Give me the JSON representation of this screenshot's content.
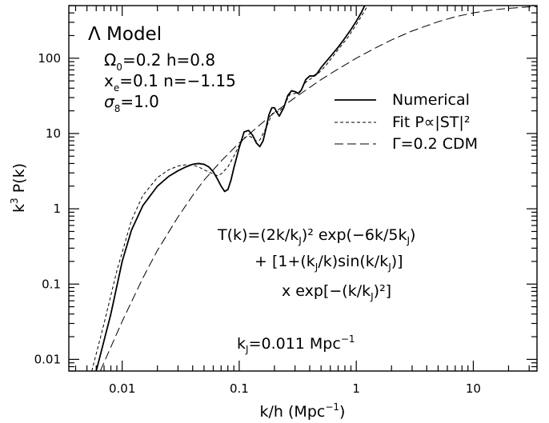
{
  "chart_data": {
    "type": "line",
    "xlabel": "k/h (Mpc",
    "xlabel_sup": "−1",
    "xlabel_end": ")",
    "ylabel": "k",
    "ylabel_sup": "3",
    "ylabel_end": " P(k)",
    "x_scale": "log",
    "y_scale": "log",
    "xlim": [
      0.0035,
      35
    ],
    "ylim": [
      0.007,
      500
    ],
    "x_ticks": [
      {
        "value": 0.01,
        "label": "0.01"
      },
      {
        "value": 0.1,
        "label": "0.1"
      },
      {
        "value": 1,
        "label": "1"
      },
      {
        "value": 10,
        "label": "10"
      }
    ],
    "y_ticks": [
      {
        "value": 0.01,
        "label": "0.01"
      },
      {
        "value": 0.1,
        "label": "0.1"
      },
      {
        "value": 1,
        "label": "1"
      },
      {
        "value": 10,
        "label": "10"
      },
      {
        "value": 100,
        "label": "100"
      }
    ],
    "legend_position": "right",
    "series": [
      {
        "name": "Numerical",
        "style": "solid",
        "points": [
          [
            0.006,
            0.007
          ],
          [
            0.008,
            0.04
          ],
          [
            0.01,
            0.2
          ],
          [
            0.012,
            0.52
          ],
          [
            0.015,
            1.1
          ],
          [
            0.02,
            2.0
          ],
          [
            0.025,
            2.7
          ],
          [
            0.03,
            3.2
          ],
          [
            0.035,
            3.6
          ],
          [
            0.04,
            3.9
          ],
          [
            0.045,
            4.0
          ],
          [
            0.05,
            3.9
          ],
          [
            0.055,
            3.6
          ],
          [
            0.06,
            3.1
          ],
          [
            0.065,
            2.5
          ],
          [
            0.07,
            2.0
          ],
          [
            0.075,
            1.7
          ],
          [
            0.08,
            1.8
          ],
          [
            0.085,
            2.4
          ],
          [
            0.09,
            3.5
          ],
          [
            0.1,
            6.5
          ],
          [
            0.11,
            10.5
          ],
          [
            0.12,
            11.0
          ],
          [
            0.13,
            9.5
          ],
          [
            0.14,
            7.5
          ],
          [
            0.15,
            6.7
          ],
          [
            0.16,
            8.0
          ],
          [
            0.17,
            12.0
          ],
          [
            0.18,
            18.0
          ],
          [
            0.19,
            22.0
          ],
          [
            0.2,
            22.0
          ],
          [
            0.21,
            19.0
          ],
          [
            0.22,
            17.0
          ],
          [
            0.24,
            22.0
          ],
          [
            0.26,
            32.0
          ],
          [
            0.28,
            37.0
          ],
          [
            0.3,
            36.0
          ],
          [
            0.32,
            34.0
          ],
          [
            0.34,
            38.0
          ],
          [
            0.37,
            52.0
          ],
          [
            0.4,
            58.0
          ],
          [
            0.43,
            58.0
          ],
          [
            0.46,
            62.0
          ],
          [
            0.5,
            75.0
          ],
          [
            0.6,
            105.0
          ],
          [
            0.7,
            140.0
          ],
          [
            0.8,
            185.0
          ],
          [
            0.9,
            240.0
          ],
          [
            1.0,
            310.0
          ],
          [
            1.1,
            400.0
          ],
          [
            1.18,
            500.0
          ]
        ]
      },
      {
        "name": "Fit P∝|ST|²",
        "style": "short-dash",
        "points": [
          [
            0.0055,
            0.007
          ],
          [
            0.007,
            0.03
          ],
          [
            0.009,
            0.15
          ],
          [
            0.012,
            0.7
          ],
          [
            0.015,
            1.5
          ],
          [
            0.02,
            2.6
          ],
          [
            0.025,
            3.3
          ],
          [
            0.03,
            3.7
          ],
          [
            0.035,
            3.85
          ],
          [
            0.04,
            3.8
          ],
          [
            0.045,
            3.6
          ],
          [
            0.05,
            3.3
          ],
          [
            0.06,
            2.9
          ],
          [
            0.065,
            2.75
          ],
          [
            0.07,
            2.9
          ],
          [
            0.08,
            3.6
          ],
          [
            0.09,
            5.0
          ],
          [
            0.1,
            7.0
          ],
          [
            0.11,
            8.8
          ],
          [
            0.12,
            9.3
          ],
          [
            0.13,
            8.8
          ],
          [
            0.14,
            8.0
          ],
          [
            0.15,
            8.2
          ],
          [
            0.17,
            12.0
          ],
          [
            0.19,
            18.0
          ],
          [
            0.2,
            19.5
          ],
          [
            0.22,
            19.5
          ],
          [
            0.24,
            23.0
          ],
          [
            0.27,
            33.0
          ],
          [
            0.3,
            34.0
          ],
          [
            0.33,
            36.0
          ],
          [
            0.37,
            48.0
          ],
          [
            0.42,
            55.0
          ],
          [
            0.47,
            62.0
          ],
          [
            0.55,
            80.0
          ],
          [
            0.7,
            130.0
          ],
          [
            0.85,
            190.0
          ],
          [
            1.0,
            280.0
          ],
          [
            1.15,
            400.0
          ],
          [
            1.25,
            500.0
          ]
        ]
      },
      {
        "name": "Γ=0.2 CDM",
        "style": "long-dash",
        "points": [
          [
            0.0065,
            0.007
          ],
          [
            0.01,
            0.032
          ],
          [
            0.015,
            0.12
          ],
          [
            0.02,
            0.28
          ],
          [
            0.03,
            0.78
          ],
          [
            0.04,
            1.5
          ],
          [
            0.05,
            2.4
          ],
          [
            0.07,
            4.3
          ],
          [
            0.1,
            7.5
          ],
          [
            0.15,
            13.0
          ],
          [
            0.2,
            19.0
          ],
          [
            0.3,
            30.0
          ],
          [
            0.5,
            52.0
          ],
          [
            0.7,
            72.0
          ],
          [
            1.0,
            100.0
          ],
          [
            1.5,
            140.0
          ],
          [
            2.0,
            175.0
          ],
          [
            3.0,
            230.0
          ],
          [
            5.0,
            305.0
          ],
          [
            7.0,
            355.0
          ],
          [
            10.0,
            400.0
          ],
          [
            15.0,
            440.0
          ],
          [
            20.0,
            460.0
          ],
          [
            30.0,
            480.0
          ],
          [
            35.0,
            485.0
          ]
        ]
      }
    ]
  },
  "annotations": {
    "model_title": "Λ Model",
    "omega_line": "Ω0=0.2  h=0.8",
    "xe_line": "xe=0.1  n=−1.15",
    "sigma_line": "σ8=1.0",
    "formula_line1": "T(k)=(2k/kJ)² exp(−6k/5kJ)",
    "formula_line2": "+ [1+(kJ/k)sin(k/kJ)]",
    "formula_line3": "x exp[−(k/kJ)²]",
    "kj_line": "kJ=0.011 Mpc⁻¹"
  }
}
